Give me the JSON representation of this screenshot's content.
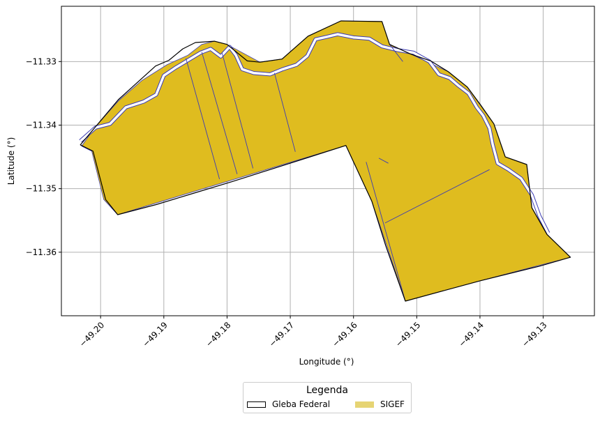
{
  "map": {
    "xlabel": "Longitude (°)",
    "ylabel": "Latitude (°)",
    "xlim": [
      -49.2062,
      -49.1219
    ],
    "ylim": [
      -11.37,
      -11.3213
    ],
    "x_ticks": [
      {
        "value": -49.2,
        "label": "−49.20"
      },
      {
        "value": -49.19,
        "label": "−49.19"
      },
      {
        "value": -49.18,
        "label": "−49.18"
      },
      {
        "value": -49.17,
        "label": "−49.17"
      },
      {
        "value": -49.16,
        "label": "−49.16"
      },
      {
        "value": -49.15,
        "label": "−49.15"
      },
      {
        "value": -49.14,
        "label": "−49.14"
      },
      {
        "value": -49.13,
        "label": "−49.13"
      }
    ],
    "y_ticks": [
      {
        "value": -11.33,
        "label": "−11.33"
      },
      {
        "value": -11.34,
        "label": "−11.34"
      },
      {
        "value": -11.35,
        "label": "−11.35"
      },
      {
        "value": -11.36,
        "label": "−11.36"
      }
    ],
    "grid": true,
    "colors": {
      "sigef_fill": "#dfbc1f",
      "sigef_legend": "#e6d474",
      "outline": "#000000",
      "parcel_line": "#3b3bb4",
      "river": "#ffffff",
      "grid": "#b0b0b0"
    },
    "gleba_outline": [
      [
        -49.2032,
        -11.3431
      ],
      [
        -49.2012,
        -11.3441
      ],
      [
        -49.1992,
        -11.3517
      ],
      [
        -49.1973,
        -11.3541
      ],
      [
        -49.1912,
        -11.3525
      ],
      [
        -49.1852,
        -11.3507
      ],
      [
        -49.1792,
        -11.3489
      ],
      [
        -49.1732,
        -11.347
      ],
      [
        -49.1672,
        -11.3451
      ],
      [
        -49.1612,
        -11.3432
      ],
      [
        -49.1571,
        -11.352
      ],
      [
        -49.1549,
        -11.359
      ],
      [
        -49.1518,
        -11.3677
      ],
      [
        -49.14,
        -11.3645
      ],
      [
        -49.1306,
        -11.3622
      ],
      [
        -49.1257,
        -11.3608
      ],
      [
        -49.1294,
        -11.3572
      ],
      [
        -49.1318,
        -11.353
      ],
      [
        -49.1326,
        -11.3462
      ],
      [
        -49.136,
        -11.345
      ],
      [
        -49.1378,
        -11.3398
      ],
      [
        -49.14,
        -11.3367
      ],
      [
        -49.142,
        -11.334
      ],
      [
        -49.145,
        -11.3316
      ],
      [
        -49.1478,
        -11.3299
      ],
      [
        -49.151,
        -11.3288
      ],
      [
        -49.1543,
        -11.3273
      ],
      [
        -49.1555,
        -11.3237
      ],
      [
        -49.162,
        -11.3236
      ],
      [
        -49.1672,
        -11.326
      ],
      [
        -49.1713,
        -11.3296
      ],
      [
        -49.1748,
        -11.3301
      ],
      [
        -49.1768,
        -11.3299
      ],
      [
        -49.18,
        -11.3273
      ],
      [
        -49.182,
        -11.3268
      ],
      [
        -49.185,
        -11.327
      ],
      [
        -49.187,
        -11.328
      ],
      [
        -49.1892,
        -11.3298
      ],
      [
        -49.1913,
        -11.3307
      ],
      [
        -49.1972,
        -11.336
      ],
      [
        -49.2032,
        -11.3431
      ]
    ],
    "sigef_outline": [
      [
        -49.203,
        -11.3433
      ],
      [
        -49.2014,
        -11.3441
      ],
      [
        -49.1995,
        -11.3517
      ],
      [
        -49.1973,
        -11.3541
      ],
      [
        -49.1612,
        -11.3432
      ],
      [
        -49.1571,
        -11.352
      ],
      [
        -49.1518,
        -11.3677
      ],
      [
        -49.14,
        -11.3645
      ],
      [
        -49.1257,
        -11.3608
      ],
      [
        -49.1294,
        -11.3572
      ],
      [
        -49.1318,
        -11.353
      ],
      [
        -49.1326,
        -11.3462
      ],
      [
        -49.136,
        -11.345
      ],
      [
        -49.1378,
        -11.3398
      ],
      [
        -49.142,
        -11.334
      ],
      [
        -49.145,
        -11.3316
      ],
      [
        -49.151,
        -11.3288
      ],
      [
        -49.1543,
        -11.3273
      ],
      [
        -49.1555,
        -11.3237
      ],
      [
        -49.162,
        -11.3236
      ],
      [
        -49.1672,
        -11.326
      ],
      [
        -49.1713,
        -11.3296
      ],
      [
        -49.1748,
        -11.3301
      ],
      [
        -49.18,
        -11.3273
      ],
      [
        -49.182,
        -11.3268
      ],
      [
        -49.184,
        -11.3273
      ],
      [
        -49.1862,
        -11.329
      ],
      [
        -49.1895,
        -11.3305
      ],
      [
        -49.1935,
        -11.333
      ],
      [
        -49.1972,
        -11.3362
      ],
      [
        -49.201,
        -11.3405
      ],
      [
        -49.203,
        -11.3433
      ]
    ],
    "river": [
      [
        -49.2032,
        -11.3425
      ],
      [
        -49.2008,
        -11.3404
      ],
      [
        -49.1985,
        -11.3398
      ],
      [
        -49.196,
        -11.3372
      ],
      [
        -49.1932,
        -11.3363
      ],
      [
        -49.1912,
        -11.3352
      ],
      [
        -49.19,
        -11.3322
      ],
      [
        -49.1882,
        -11.331
      ],
      [
        -49.1862,
        -11.3298
      ],
      [
        -49.1842,
        -11.3286
      ],
      [
        -49.1826,
        -11.328
      ],
      [
        -49.181,
        -11.3292
      ],
      [
        -49.1796,
        -11.3277
      ],
      [
        -49.1786,
        -11.329
      ],
      [
        -49.1776,
        -11.3312
      ],
      [
        -49.1758,
        -11.3318
      ],
      [
        -49.1732,
        -11.332
      ],
      [
        -49.1712,
        -11.3312
      ],
      [
        -49.169,
        -11.3305
      ],
      [
        -49.1673,
        -11.3291
      ],
      [
        -49.166,
        -11.3265
      ],
      [
        -49.1642,
        -11.3261
      ],
      [
        -49.1625,
        -11.3257
      ],
      [
        -49.16,
        -11.3262
      ],
      [
        -49.1575,
        -11.3264
      ],
      [
        -49.1555,
        -11.3276
      ],
      [
        -49.153,
        -11.3282
      ],
      [
        -49.1505,
        -11.3286
      ],
      [
        -49.148,
        -11.33
      ],
      [
        -49.1465,
        -11.332
      ],
      [
        -49.1448,
        -11.3326
      ],
      [
        -49.1435,
        -11.3337
      ],
      [
        -49.1418,
        -11.335
      ],
      [
        -49.1405,
        -11.3372
      ],
      [
        -49.1395,
        -11.3385
      ],
      [
        -49.1385,
        -11.3405
      ],
      [
        -49.138,
        -11.343
      ],
      [
        -49.1372,
        -11.346
      ],
      [
        -49.1355,
        -11.347
      ],
      [
        -49.1335,
        -11.3484
      ],
      [
        -49.1318,
        -11.351
      ],
      [
        -49.1306,
        -11.3543
      ],
      [
        -49.1292,
        -11.357
      ]
    ],
    "parcel_lines": [
      [
        [
          -49.1865,
          -11.3295
        ],
        [
          -49.1812,
          -11.3485
        ]
      ],
      [
        [
          -49.184,
          -11.3285
        ],
        [
          -49.1784,
          -11.3477
        ]
      ],
      [
        [
          -49.1808,
          -11.3286
        ],
        [
          -49.1759,
          -11.3468
        ]
      ],
      [
        [
          -49.1725,
          -11.3318
        ],
        [
          -49.1692,
          -11.3442
        ]
      ],
      [
        [
          -49.1543,
          -11.3273
        ],
        [
          -49.1522,
          -11.33
        ]
      ],
      [
        [
          -49.158,
          -11.3458
        ],
        [
          -49.1518,
          -11.3677
        ]
      ],
      [
        [
          -49.156,
          -11.3452
        ],
        [
          -49.1545,
          -11.346
        ]
      ],
      [
        [
          -49.155,
          -11.3554
        ],
        [
          -49.1385,
          -11.347
        ]
      ]
    ]
  },
  "legend": {
    "title": "Legenda",
    "items": [
      {
        "label": "Gleba Federal",
        "style": "outline"
      },
      {
        "label": "SIGEF",
        "style": "fill"
      }
    ]
  }
}
